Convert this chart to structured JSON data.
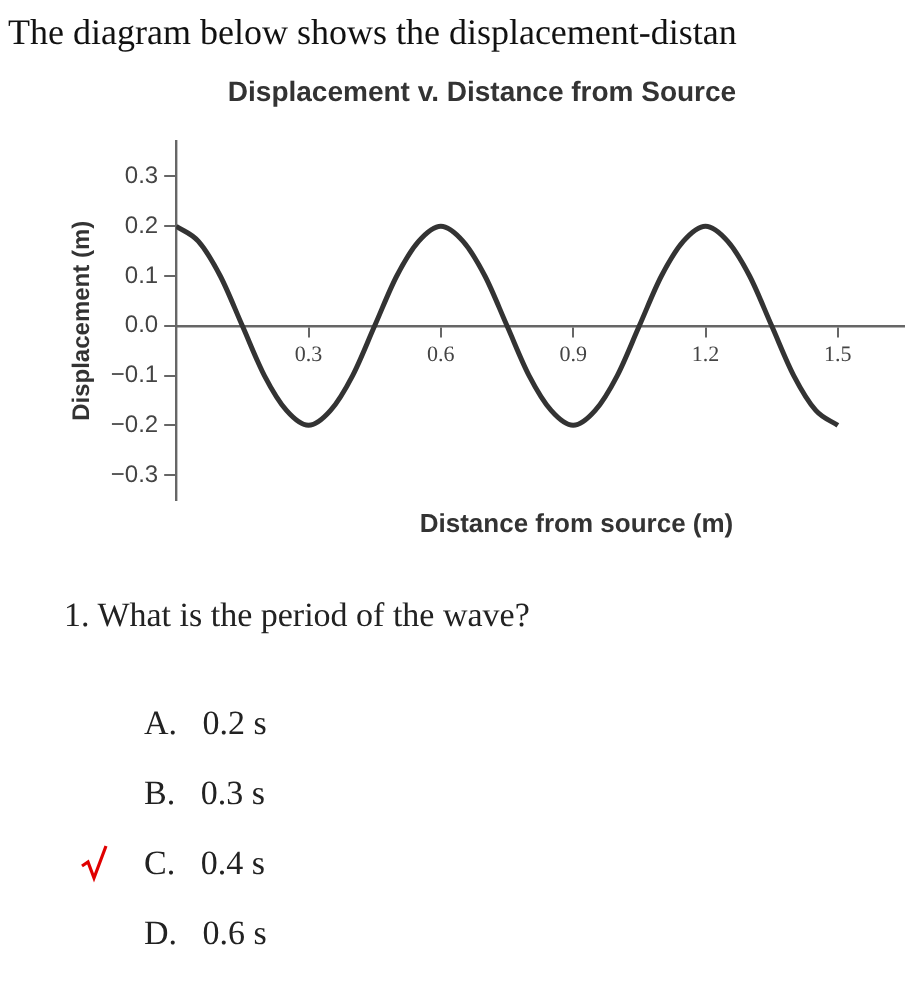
{
  "chart_data": {
    "type": "line",
    "title": "The diagram below shows the displacement-distan",
    "subtitle": "Displacement v. Distance from Source",
    "xlabel": "Distance from source (m)",
    "ylabel": "Displacement (m)",
    "x": [
      0,
      0.05,
      0.1,
      0.15,
      0.2,
      0.25,
      0.3,
      0.35,
      0.4,
      0.45,
      0.5,
      0.55,
      0.6,
      0.65,
      0.7,
      0.75,
      0.8,
      0.85,
      0.9,
      0.95,
      1.0,
      1.05,
      1.1,
      1.15,
      1.2,
      1.25,
      1.3,
      1.35,
      1.4,
      1.45,
      1.5
    ],
    "series": [
      {
        "color": "#333333",
        "values": [
          0.2,
          0.17,
          0.1,
          0,
          -0.1,
          -0.17,
          -0.2,
          -0.17,
          -0.1,
          0,
          0.1,
          0.17,
          0.2,
          0.17,
          0.1,
          0,
          -0.1,
          -0.17,
          -0.2,
          -0.17,
          -0.1,
          0,
          0.1,
          0.17,
          0.2,
          0.17,
          0.1,
          0,
          -0.1,
          -0.17,
          -0.2
        ]
      }
    ],
    "xlim": [
      0,
      1.65
    ],
    "xticks": [
      0.3,
      0.6,
      0.9,
      1.2,
      1.5
    ],
    "ylim": [
      -0.35,
      0.37
    ],
    "yticks": [
      {
        "value": 0.3,
        "label": "0.3"
      },
      {
        "value": 0.2,
        "label": "0.2"
      },
      {
        "value": 0.1,
        "label": "0.1"
      },
      {
        "value": 0,
        "label": "0.0"
      },
      {
        "value": -0.1,
        "label": "−0.1"
      },
      {
        "value": -0.2,
        "label": "−0.2"
      },
      {
        "value": -0.3,
        "label": "−0.3"
      }
    ],
    "grid": false,
    "legend": false,
    "marker": "none",
    "line_style": "solid",
    "annotations": [
      "1. What is the period of the wave?",
      "A.   0.2 s",
      "B.   0.3 s",
      "C.   0.4 s",
      "D.   0.6 s"
    ]
  }
}
